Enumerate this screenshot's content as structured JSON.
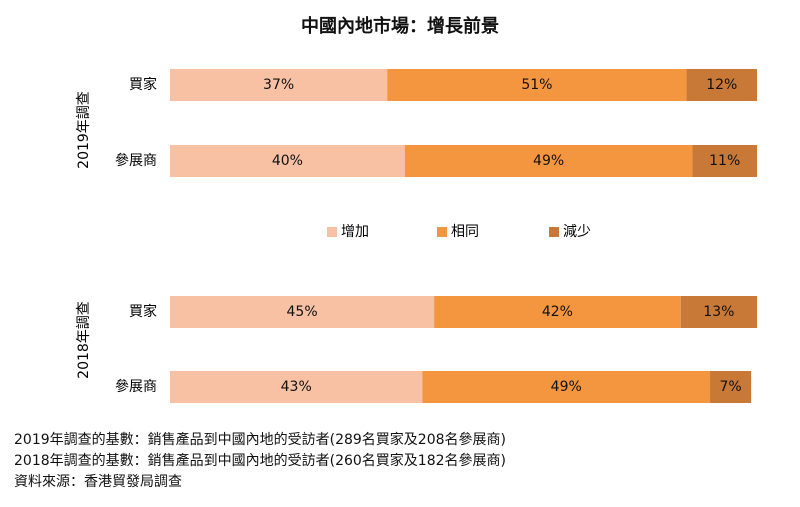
{
  "chart_data": {
    "type": "bar",
    "stacked": true,
    "orientation": "horizontal",
    "title": "中國內地市場：增長前景",
    "xlim": [
      0,
      100
    ],
    "grid": false,
    "legend_position": "between-groups",
    "legend": [
      {
        "name": "增加",
        "color": "#F8C1A4"
      },
      {
        "name": "相同",
        "color": "#F4953F"
      },
      {
        "name": "減少",
        "color": "#C87837"
      }
    ],
    "groups": [
      {
        "label": "2019年調查",
        "bars": [
          {
            "category": "買家",
            "values": [
              37,
              51,
              12
            ],
            "labels": [
              "37%",
              "51%",
              "12%"
            ]
          },
          {
            "category": "參展商",
            "values": [
              40,
              49,
              11
            ],
            "labels": [
              "40%",
              "49%",
              "11%"
            ]
          }
        ]
      },
      {
        "label": "2018年調查",
        "bars": [
          {
            "category": "買家",
            "values": [
              45,
              42,
              13
            ],
            "labels": [
              "45%",
              "42%",
              "13%"
            ]
          },
          {
            "category": "參展商",
            "values": [
              43,
              49,
              7
            ],
            "labels": [
              "43%",
              "49%",
              "7%"
            ]
          }
        ]
      }
    ]
  },
  "notes": [
    "2019年調查的基數：銷售產品到中國內地的受訪者(289名買家及208名參展商)",
    "2018年調查的基數：銷售產品到中國內地的受訪者(260名買家及182名參展商)",
    "資料來源：香港貿發局調查"
  ]
}
